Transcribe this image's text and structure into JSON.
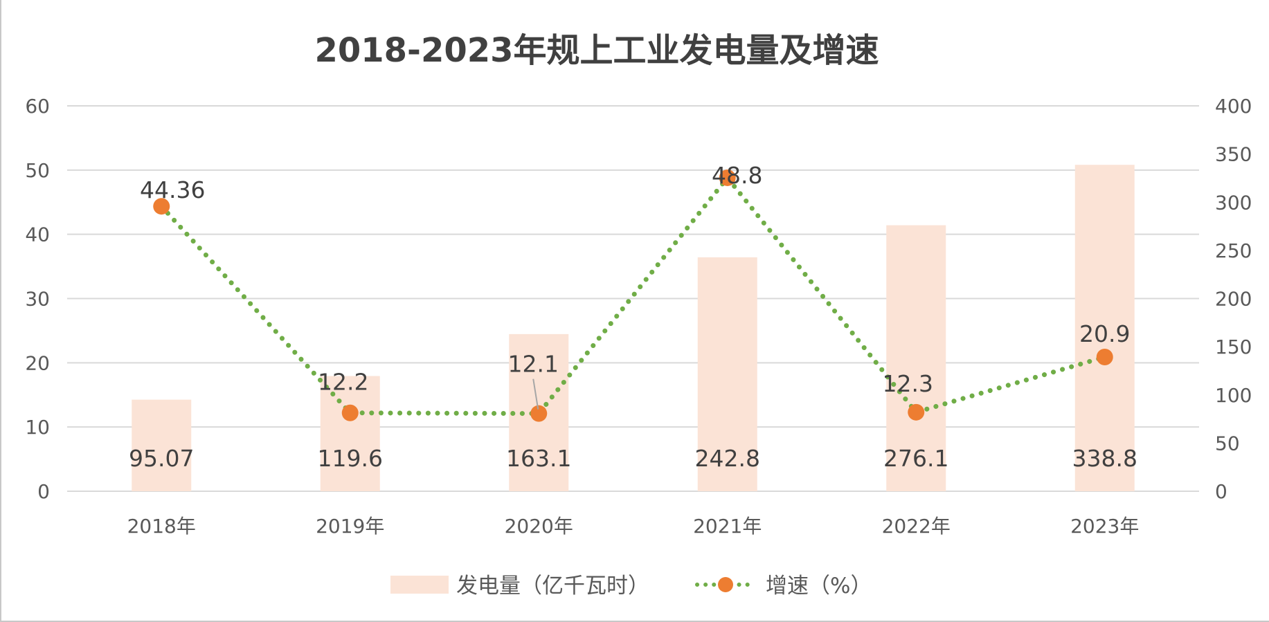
{
  "chart_data": {
    "type": "bar",
    "title": "2018-2023年规上工业发电量及增速",
    "categories": [
      "2018年",
      "2019年",
      "2020年",
      "2021年",
      "2022年",
      "2023年"
    ],
    "series": [
      {
        "name": "发电量（亿千瓦时）",
        "type": "bar",
        "axis": "right",
        "values": [
          95.07,
          119.6,
          163.1,
          242.8,
          276.1,
          338.8
        ],
        "labels": [
          "95.07",
          "119.6",
          "163.1",
          "242.8",
          "276.1",
          "338.8"
        ],
        "color": "#fbe3d6"
      },
      {
        "name": "增速（%）",
        "type": "line",
        "axis": "left",
        "values": [
          44.36,
          12.2,
          12.1,
          48.8,
          12.3,
          20.9
        ],
        "labels": [
          "44.36",
          "12.2",
          "12.1",
          "48.8",
          "12.3",
          "20.9"
        ],
        "line_color": "#70ad47",
        "line_style": "dotted",
        "marker_color": "#ed7d31"
      }
    ],
    "y_left": {
      "ylim": [
        0,
        60
      ],
      "ticks": [
        "0",
        "10",
        "20",
        "30",
        "40",
        "50",
        "60"
      ]
    },
    "y_right": {
      "ylim": [
        0,
        400
      ],
      "ticks": [
        "0",
        "50",
        "100",
        "150",
        "200",
        "250",
        "300",
        "350",
        "400"
      ]
    },
    "grid": true,
    "legend_position": "bottom",
    "gridline_color": "#d9d9d9"
  }
}
